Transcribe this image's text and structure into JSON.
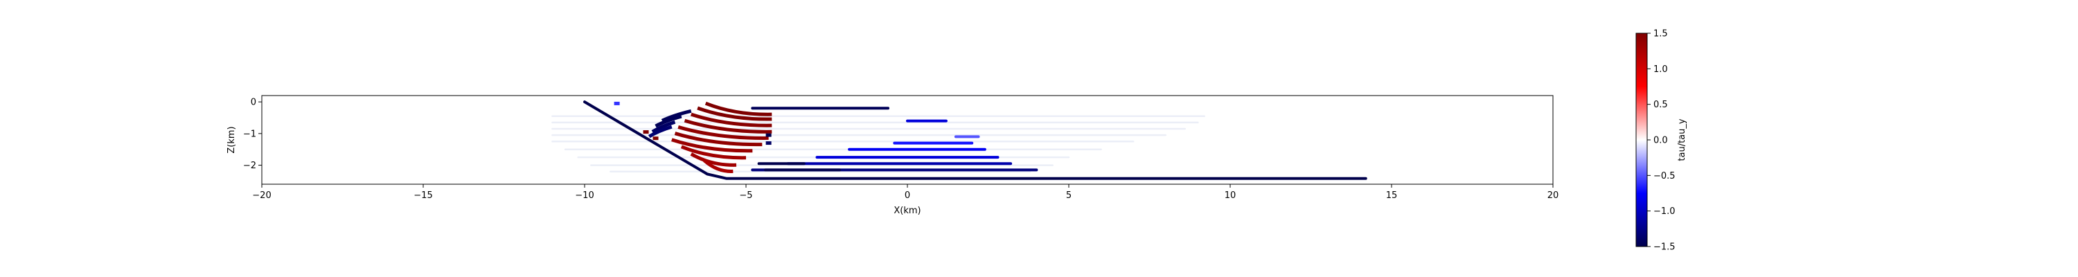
{
  "chart_data": {
    "type": "scatter",
    "title": "",
    "xlabel": "X(km)",
    "ylabel": "Z(km)",
    "xlim": [
      -20,
      20
    ],
    "ylim": [
      -2.6,
      0.2
    ],
    "xticks": [
      -20,
      -15,
      -10,
      -5,
      0,
      5,
      10,
      15,
      20
    ],
    "xtick_labels": [
      "−20",
      "−15",
      "−10",
      "−5",
      "0",
      "5",
      "10",
      "15",
      "20"
    ],
    "yticks": [
      0,
      -1,
      -2
    ],
    "ytick_labels": [
      "0",
      "−1",
      "−2"
    ],
    "grid": false,
    "colorbar": {
      "label": "tau/tau_y",
      "range": [
        -1.5,
        1.5
      ],
      "ticks": [
        1.5,
        1.0,
        0.5,
        0.0,
        -0.5,
        -1.0,
        -1.5
      ],
      "tick_labels": [
        "1.5",
        "1.0",
        "0.5",
        "0.0",
        "−0.5",
        "−1.0",
        "−1.5"
      ],
      "colormap": "seismic"
    },
    "fault": {
      "label_x": [
        -10.0,
        -6.2,
        -5.6,
        14.2
      ],
      "label_z": [
        0.0,
        -2.28,
        -2.42,
        -2.42
      ],
      "value": -1.5
    },
    "segments": [
      {
        "x": [
          -4.8,
          -0.6
        ],
        "z": -0.2,
        "value": -1.45
      },
      {
        "x": [
          0.0,
          1.2
        ],
        "z": -0.6,
        "value": -0.9
      },
      {
        "x": [
          1.5,
          2.2
        ],
        "z": -1.1,
        "value": -0.5
      },
      {
        "x": [
          -0.4,
          2.0
        ],
        "z": -1.3,
        "value": -0.7
      },
      {
        "x": [
          -1.8,
          2.4
        ],
        "z": -1.5,
        "value": -0.8
      },
      {
        "x": [
          -2.8,
          2.8
        ],
        "z": -1.75,
        "value": -0.9
      },
      {
        "x": [
          -3.7,
          3.2
        ],
        "z": -1.95,
        "value": -1.1
      },
      {
        "x": [
          -4.8,
          4.0
        ],
        "z": -2.15,
        "value": -1.3
      },
      {
        "x": [
          -4.4,
          -2.1
        ],
        "z": -2.15,
        "value": -1.5
      },
      {
        "x": [
          -4.6,
          -3.2
        ],
        "z": -1.95,
        "value": -1.5
      }
    ],
    "stripes": [
      {
        "z": -0.35,
        "x0": -6.25,
        "x1": -4.2,
        "value": 1.5
      },
      {
        "z": -0.5,
        "x0": -6.5,
        "x1": -4.2,
        "value": 1.5
      },
      {
        "z": -0.7,
        "x0": -6.7,
        "x1": -4.2,
        "value": 1.45
      },
      {
        "z": -0.9,
        "x0": -6.9,
        "x1": -4.2,
        "value": 1.45
      },
      {
        "z": -1.1,
        "x0": -7.1,
        "x1": -4.3,
        "value": 1.4
      },
      {
        "z": -1.3,
        "x0": -7.2,
        "x1": -4.5,
        "value": 1.4
      },
      {
        "z": -1.5,
        "x0": -7.3,
        "x1": -4.8,
        "value": 1.35
      },
      {
        "z": -1.72,
        "x0": -7.0,
        "x1": -5.0,
        "value": 1.3
      },
      {
        "z": -1.95,
        "x0": -6.7,
        "x1": -5.3,
        "value": 1.3
      },
      {
        "z": -2.15,
        "x0": -6.3,
        "x1": -5.4,
        "value": 1.25
      }
    ],
    "blue_arcs": [
      {
        "z": -0.55,
        "x0": -7.6,
        "x1": -6.7,
        "value": -1.45
      },
      {
        "z": -0.72,
        "x0": -7.8,
        "x1": -7.0,
        "value": -1.45
      },
      {
        "z": -0.9,
        "x0": -7.9,
        "x1": -7.2,
        "value": -1.4
      },
      {
        "z": -1.05,
        "x0": -8.0,
        "x1": -7.3,
        "value": -1.35
      }
    ],
    "small_marks": [
      {
        "x": -8.1,
        "z": -0.95,
        "value": 1.5
      },
      {
        "x": -7.8,
        "z": -1.15,
        "value": 1.5
      },
      {
        "x": -4.3,
        "z": -1.05,
        "value": -1.5
      },
      {
        "x": -4.3,
        "z": -1.3,
        "value": -1.4
      },
      {
        "x": -9.0,
        "z": -0.05,
        "value": -0.6
      }
    ],
    "faint_rows": [
      {
        "z": -0.45,
        "x0": -11.0,
        "x1": 9.2
      },
      {
        "z": -0.65,
        "x0": -11.0,
        "x1": 9.0
      },
      {
        "z": -0.85,
        "x0": -11.0,
        "x1": 8.6
      },
      {
        "z": -1.05,
        "x0": -11.0,
        "x1": 8.0
      },
      {
        "z": -1.25,
        "x0": -11.0,
        "x1": 7.0
      },
      {
        "z": -1.5,
        "x0": -10.6,
        "x1": 6.0
      },
      {
        "z": -1.75,
        "x0": -10.2,
        "x1": 5.0
      },
      {
        "z": -2.0,
        "x0": -9.8,
        "x1": 4.5
      },
      {
        "z": -2.2,
        "x0": -9.2,
        "x1": 3.8
      }
    ]
  }
}
